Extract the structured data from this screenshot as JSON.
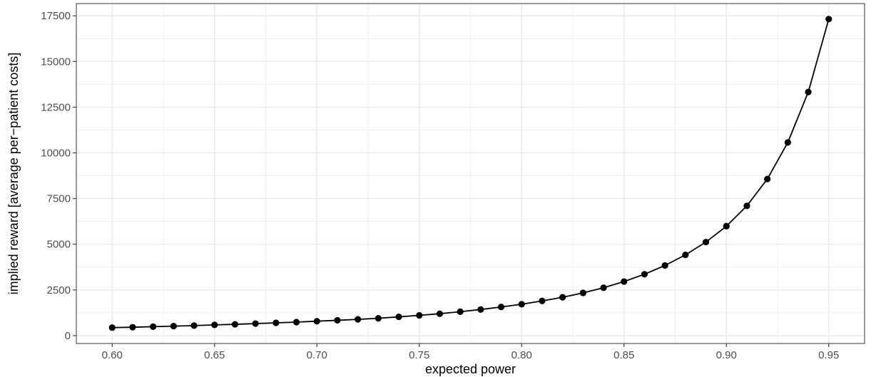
{
  "chart_data": {
    "type": "line",
    "markers": true,
    "xlabel": "expected power",
    "ylabel": "implied reward [average per−patient costs]",
    "xlim": [
      0.5825,
      0.9675
    ],
    "ylim": [
      -430,
      18170
    ],
    "xticks": [
      0.6,
      0.65,
      0.7,
      0.75,
      0.8,
      0.85,
      0.9,
      0.95
    ],
    "xtick_labels": [
      "0.60",
      "0.65",
      "0.70",
      "0.75",
      "0.80",
      "0.85",
      "0.90",
      "0.95"
    ],
    "yticks": [
      0,
      2500,
      5000,
      7500,
      10000,
      12500,
      15000,
      17500
    ],
    "ytick_labels": [
      "0",
      "2500",
      "5000",
      "7500",
      "10000",
      "12500",
      "15000",
      "17500"
    ],
    "grid": true,
    "legend": "none",
    "series": [
      {
        "x": [
          0.6,
          0.61,
          0.62,
          0.63,
          0.64,
          0.65,
          0.66,
          0.67,
          0.68,
          0.69,
          0.7,
          0.71,
          0.72,
          0.73,
          0.74,
          0.75,
          0.76,
          0.77,
          0.78,
          0.79,
          0.8,
          0.81,
          0.82,
          0.83,
          0.84,
          0.85,
          0.86,
          0.87,
          0.88,
          0.89,
          0.9,
          0.91,
          0.92,
          0.93,
          0.94,
          0.95
        ],
        "y": [
          440,
          460,
          490,
          520,
          550,
          590,
          620,
          660,
          700,
          740,
          790,
          840,
          890,
          950,
          1030,
          1110,
          1200,
          1310,
          1430,
          1570,
          1720,
          1900,
          2100,
          2340,
          2620,
          2960,
          3360,
          3840,
          4420,
          5120,
          5990,
          7100,
          8570,
          10570,
          13330,
          17320
        ]
      }
    ],
    "colors": {
      "line": "#000000",
      "grid": "#ebebeb",
      "panel_border": "#333333"
    }
  }
}
